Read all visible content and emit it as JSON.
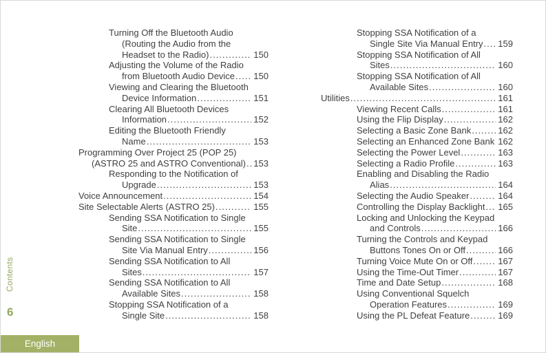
{
  "page": {
    "accent_green": "#a2b166",
    "sidebar_text_green": "#92a85c",
    "text_color": "#3f3f3f"
  },
  "sidebar": {
    "section_label": "Contents",
    "page_number": "6",
    "language_label": "English"
  },
  "toc": {
    "columns": [
      {
        "entries": [
          {
            "level": 2,
            "lines": [
              "Turning Off the Bluetooth Audio",
              "(Routing the Audio from the",
              "Headset to the Radio)"
            ],
            "page": "150"
          },
          {
            "level": 2,
            "lines": [
              "Adjusting the Volume of the Radio",
              "from Bluetooth Audio Device"
            ],
            "page": "150"
          },
          {
            "level": 2,
            "lines": [
              "Viewing and Clearing the Bluetooth",
              "Device Information"
            ],
            "page": "151"
          },
          {
            "level": 2,
            "lines": [
              "Clearing All Bluetooth Devices",
              "Information"
            ],
            "page": "152"
          },
          {
            "level": 2,
            "lines": [
              "Editing the Bluetooth Friendly",
              "Name"
            ],
            "page": "153"
          },
          {
            "level": 1,
            "lines": [
              "Programming Over Project 25 (POP 25)",
              "(ASTRO 25 and ASTRO Conventional)"
            ],
            "page": "153"
          },
          {
            "level": 2,
            "lines": [
              "Responding to the Notification of",
              "Upgrade"
            ],
            "page": "153"
          },
          {
            "level": 1,
            "lines": [
              "Voice Announcement"
            ],
            "page": "154"
          },
          {
            "level": 1,
            "lines": [
              "Site Selectable Alerts (ASTRO 25)"
            ],
            "page": "155"
          },
          {
            "level": 2,
            "lines": [
              "Sending SSA Notification to Single",
              "Site"
            ],
            "page": "155"
          },
          {
            "level": 2,
            "lines": [
              "Sending SSA Notification to Single",
              "Site Via Manual Entry"
            ],
            "page": "156"
          },
          {
            "level": 2,
            "lines": [
              "Sending SSA Notification to All",
              "Sites"
            ],
            "page": "157"
          },
          {
            "level": 2,
            "lines": [
              "Sending SSA Notification to All",
              "Available Sites"
            ],
            "page": "158"
          },
          {
            "level": 2,
            "lines": [
              "Stopping SSA Notification of a",
              "Single Site"
            ],
            "page": "158"
          }
        ]
      },
      {
        "entries": [
          {
            "level": 2,
            "lines": [
              "Stopping SSA Notification of a",
              "Single Site Via Manual Entry"
            ],
            "page": "159"
          },
          {
            "level": 2,
            "lines": [
              "Stopping SSA Notification of All",
              "Sites"
            ],
            "page": "160"
          },
          {
            "level": 2,
            "lines": [
              "Stopping SSA Notification of All",
              "Available Sites"
            ],
            "page": "160"
          },
          {
            "level": 1,
            "lines": [
              "Utilities"
            ],
            "page": "161"
          },
          {
            "level": 2,
            "lines": [
              "Viewing Recent Calls"
            ],
            "page": "161"
          },
          {
            "level": 2,
            "lines": [
              "Using the Flip Display"
            ],
            "page": "162"
          },
          {
            "level": 2,
            "lines": [
              "Selecting a Basic Zone Bank"
            ],
            "page": "162"
          },
          {
            "level": 2,
            "lines": [
              "Selecting an Enhanced Zone Bank"
            ],
            "page": "162"
          },
          {
            "level": 2,
            "lines": [
              "Selecting the Power Level"
            ],
            "page": "163"
          },
          {
            "level": 2,
            "lines": [
              "Selecting a Radio Profile"
            ],
            "page": "163"
          },
          {
            "level": 2,
            "lines": [
              "Enabling and Disabling the Radio",
              "Alias"
            ],
            "page": "164"
          },
          {
            "level": 2,
            "lines": [
              "Selecting the Audio Speaker"
            ],
            "page": "164"
          },
          {
            "level": 2,
            "lines": [
              "Controlling the Display Backlight"
            ],
            "page": "165"
          },
          {
            "level": 2,
            "lines": [
              "Locking and Unlocking the Keypad",
              "and Controls"
            ],
            "page": "166"
          },
          {
            "level": 2,
            "lines": [
              "Turning the Controls and Keypad",
              "Buttons Tones On or Off"
            ],
            "page": "166"
          },
          {
            "level": 2,
            "lines": [
              "Turning Voice Mute On or Off"
            ],
            "page": "167"
          },
          {
            "level": 2,
            "lines": [
              "Using the Time-Out Timer"
            ],
            "page": "167"
          },
          {
            "level": 2,
            "lines": [
              "Time and Date Setup"
            ],
            "page": "168"
          },
          {
            "level": 2,
            "lines": [
              "Using Conventional Squelch",
              "Operation Features"
            ],
            "page": "169"
          },
          {
            "level": 2,
            "lines": [
              "Using the PL Defeat Feature"
            ],
            "page": "169"
          }
        ]
      }
    ]
  }
}
